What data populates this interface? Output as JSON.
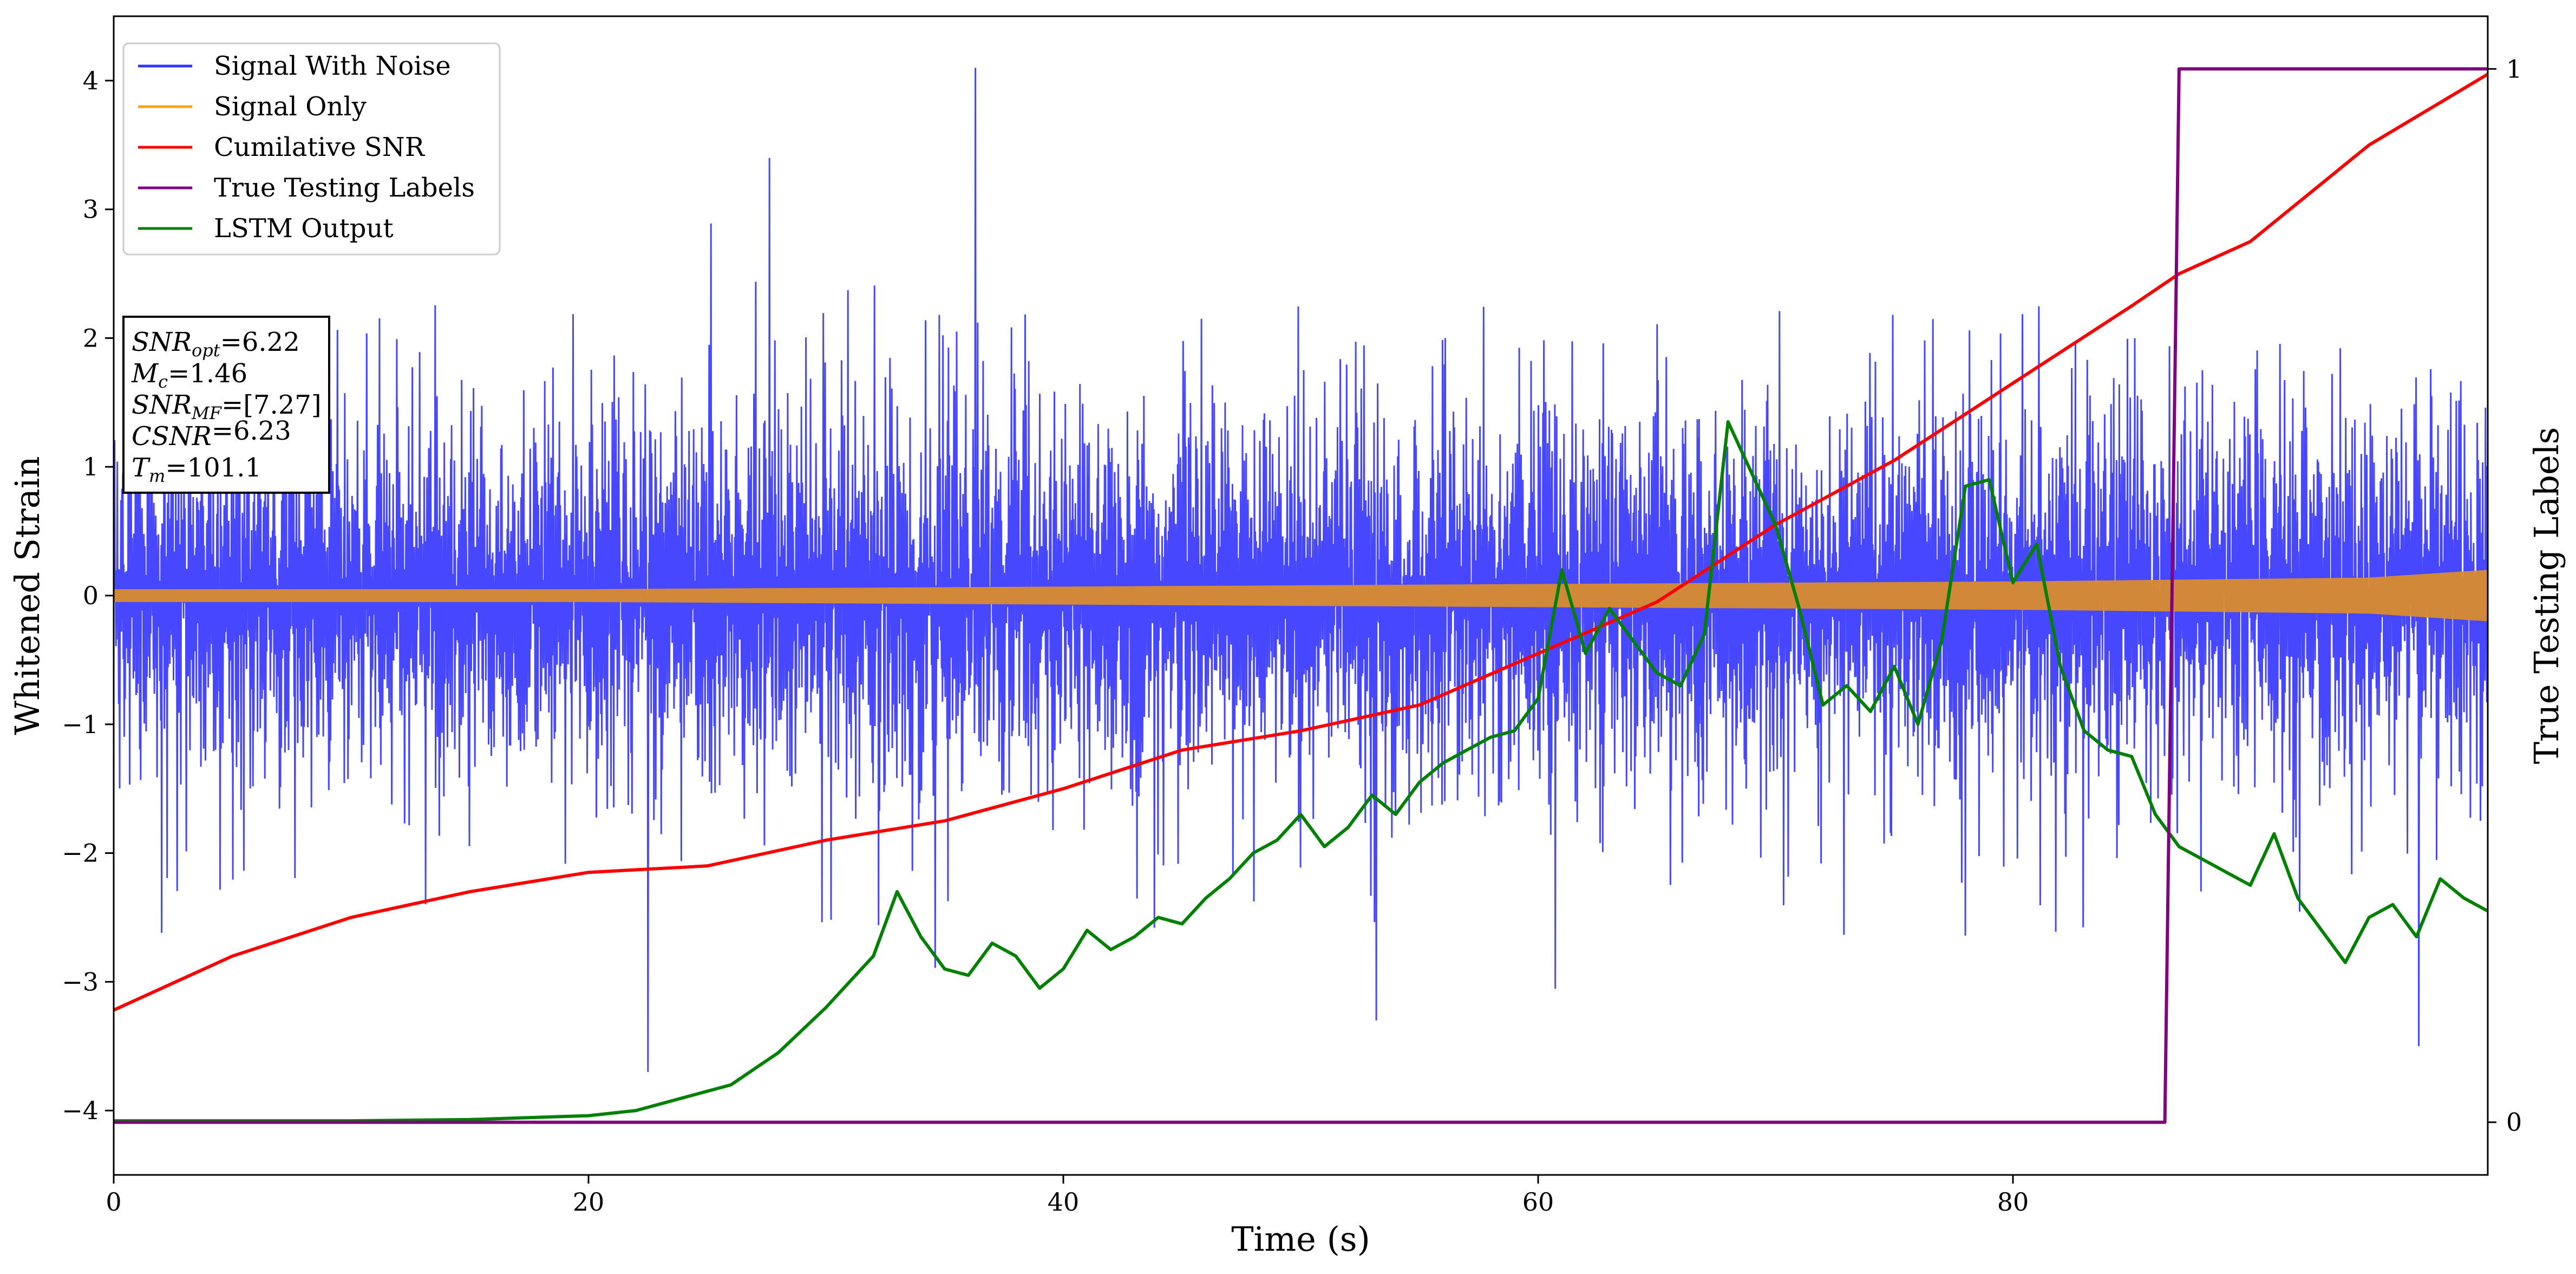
{
  "chart_data": {
    "type": "line",
    "title": "",
    "xlabel": "Time (s)",
    "ylabel": "Whitened Strain",
    "y2label": "True Testing Labels",
    "xlim": [
      0,
      100
    ],
    "ylim": [
      -4.5,
      4.5
    ],
    "y2lim": [
      -0.05,
      1.05
    ],
    "xticks": [
      0,
      20,
      40,
      60,
      80
    ],
    "yticks": [
      -4,
      -3,
      -2,
      -1,
      0,
      1,
      2,
      3,
      4
    ],
    "y2ticks": [
      0,
      1
    ],
    "grid": false,
    "legend_position": "top-left",
    "series": [
      {
        "name": "Signal With Noise",
        "color": "#3333ff",
        "axis": "left",
        "kind": "noise",
        "amplitude_sigma": 1.0,
        "x": [
          0,
          100
        ],
        "notable_peaks": [
          {
            "x": 36.3,
            "y": 4.1
          },
          {
            "x": 22.5,
            "y": -3.7
          },
          {
            "x": 97.1,
            "y": -3.5
          }
        ]
      },
      {
        "name": "Signal Only",
        "color": "#ffa500",
        "axis": "left",
        "kind": "envelope",
        "x": [
          0,
          10,
          20,
          30,
          40,
          50,
          60,
          70,
          80,
          90,
          95,
          100
        ],
        "envelope": [
          0.05,
          0.05,
          0.05,
          0.06,
          0.07,
          0.08,
          0.09,
          0.1,
          0.11,
          0.13,
          0.14,
          0.2
        ]
      },
      {
        "name": "Cumilative SNR",
        "color": "#ff0000",
        "axis": "left",
        "kind": "line",
        "x": [
          0,
          5,
          10,
          15,
          20,
          25,
          30,
          35,
          40,
          45,
          50,
          55,
          60,
          65,
          70,
          75,
          80,
          85,
          87,
          90,
          95,
          100
        ],
        "y": [
          -3.22,
          -2.8,
          -2.5,
          -2.3,
          -2.15,
          -2.1,
          -1.9,
          -1.75,
          -1.5,
          -1.2,
          -1.05,
          -0.85,
          -0.45,
          -0.05,
          0.55,
          1.05,
          1.65,
          2.25,
          2.5,
          2.75,
          3.5,
          4.05
        ]
      },
      {
        "name": "True Testing Labels",
        "color": "#800080",
        "axis": "right",
        "kind": "step",
        "x": [
          0,
          86.4,
          87.0,
          100
        ],
        "y": [
          0,
          0,
          1,
          1
        ]
      },
      {
        "name": "LSTM Output",
        "color": "#008000",
        "axis": "left",
        "kind": "line",
        "x": [
          0,
          10,
          15,
          20,
          22,
          24,
          26,
          28,
          30,
          31,
          32,
          33,
          34,
          35,
          36,
          37,
          38,
          39,
          40,
          41,
          42,
          43,
          44,
          45,
          46,
          47,
          48,
          49,
          50,
          51,
          52,
          53,
          54,
          55,
          56,
          57,
          58,
          59,
          60,
          61,
          62,
          63,
          64,
          65,
          66,
          67,
          68,
          69,
          70,
          71,
          72,
          73,
          74,
          75,
          76,
          77,
          78,
          79,
          80,
          81,
          82,
          83,
          84,
          85,
          86,
          87,
          88,
          89,
          90,
          91,
          92,
          93,
          94,
          95,
          96,
          97,
          98,
          99,
          100
        ],
        "y": [
          -4.08,
          -4.08,
          -4.07,
          -4.04,
          -4.0,
          -3.9,
          -3.8,
          -3.55,
          -3.2,
          -3.0,
          -2.8,
          -2.3,
          -2.65,
          -2.9,
          -2.95,
          -2.7,
          -2.8,
          -3.05,
          -2.9,
          -2.6,
          -2.75,
          -2.65,
          -2.5,
          -2.55,
          -2.35,
          -2.2,
          -2.0,
          -1.9,
          -1.7,
          -1.95,
          -1.8,
          -1.55,
          -1.7,
          -1.45,
          -1.3,
          -1.2,
          -1.1,
          -1.05,
          -0.8,
          0.2,
          -0.45,
          -0.1,
          -0.35,
          -0.6,
          -0.7,
          -0.3,
          1.35,
          0.95,
          0.55,
          -0.1,
          -0.85,
          -0.7,
          -0.9,
          -0.55,
          -1.0,
          -0.35,
          0.85,
          0.9,
          0.1,
          0.4,
          -0.55,
          -1.05,
          -1.2,
          -1.25,
          -1.7,
          -1.95,
          -2.05,
          -2.15,
          -2.25,
          -1.85,
          -2.35,
          -2.6,
          -2.85,
          -2.5,
          -2.4,
          -2.65,
          -2.2,
          -2.35,
          -2.45
        ]
      }
    ],
    "info_box": {
      "lines": [
        {
          "sym": "SNR",
          "sub": "opt",
          "rest": "=6.22"
        },
        {
          "sym": "M",
          "sub": "c",
          "rest": "=1.46"
        },
        {
          "sym": "SNR",
          "sub": "MF",
          "rest": "=[7.27]"
        },
        {
          "sym": "CSNR",
          "sub": "",
          "rest": "=6.23"
        },
        {
          "sym": "T",
          "sub": "m",
          "rest": "=101.1"
        }
      ]
    }
  }
}
